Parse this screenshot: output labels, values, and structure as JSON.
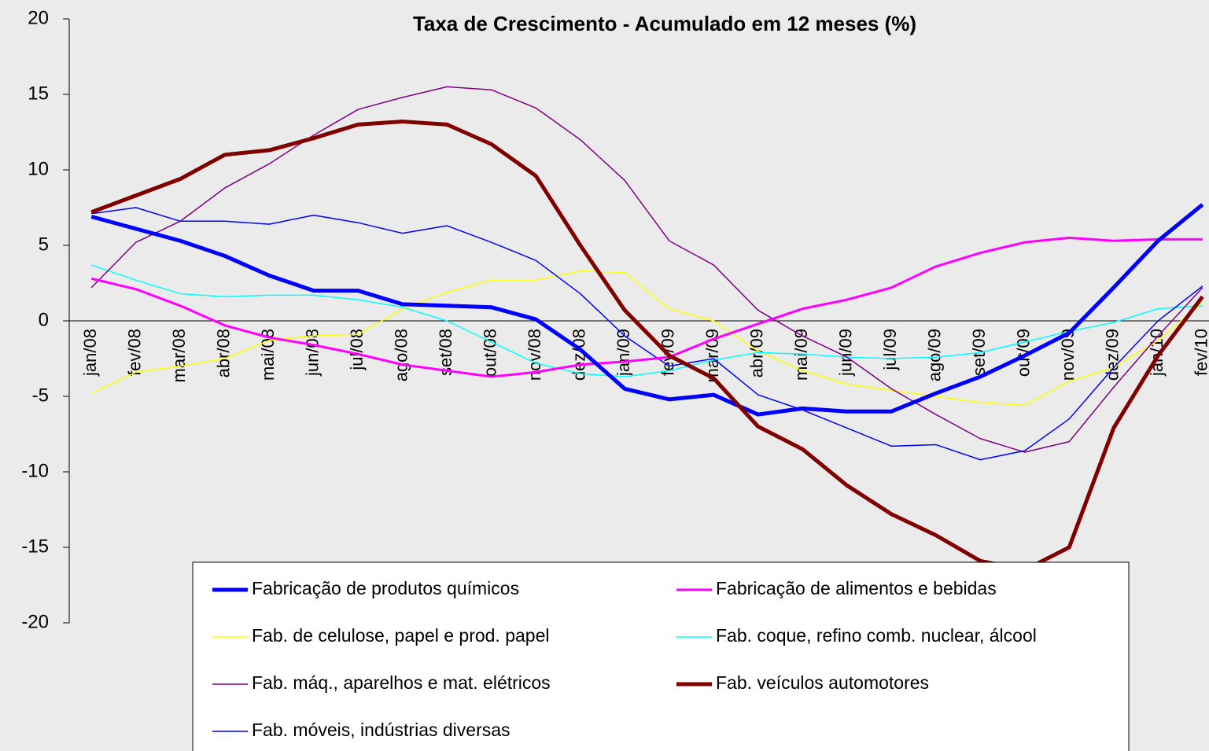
{
  "chart_data": {
    "type": "line",
    "title": "Taxa de Crescimento - Acumulado em 12 meses (%)",
    "categories": [
      "jan/08",
      "fev/08",
      "mar/08",
      "abr/08",
      "mai/08",
      "jun/08",
      "jul/08",
      "ago/08",
      "set/08",
      "out/08",
      "nov/08",
      "dez/08",
      "jan/09",
      "fev/09",
      "mar/09",
      "abr/09",
      "mai/09",
      "jun/09",
      "jul/09",
      "ago/09",
      "set/09",
      "out/09",
      "nov/09",
      "dez/09",
      "jan/10",
      "fev/10"
    ],
    "ylim": [
      -20,
      20
    ],
    "yticks": [
      -20,
      -15,
      -10,
      -5,
      0,
      5,
      10,
      15,
      20
    ],
    "grid": false,
    "legend": "bottom",
    "series": [
      {
        "name": "Fabricação de produtos químicos",
        "color": "#0000ff",
        "line_width": 5,
        "values": [
          6.9,
          6.1,
          5.3,
          4.3,
          3.0,
          2.0,
          2.0,
          1.1,
          1.0,
          0.9,
          0.1,
          -1.9,
          -4.5,
          -5.2,
          -4.9,
          -6.2,
          -5.8,
          -6.0,
          -6.0,
          -4.8,
          -3.7,
          -2.3,
          -0.8,
          2.2,
          5.3,
          7.7
        ]
      },
      {
        "name": "Fabricação de alimentos e bebidas",
        "color": "#ff00ff",
        "line_width": 3,
        "values": [
          2.8,
          2.1,
          1.0,
          -0.3,
          -1.1,
          -1.6,
          -2.2,
          -2.9,
          -3.3,
          -3.7,
          -3.4,
          -2.9,
          -2.7,
          -2.4,
          -1.2,
          -0.2,
          0.8,
          1.4,
          2.2,
          3.6,
          4.5,
          5.2,
          5.5,
          5.3,
          5.4,
          5.4
        ]
      },
      {
        "name": "Fab. de celulose, papel e prod. papel",
        "color": "#ffff00",
        "line_width": 1.5,
        "values": [
          -4.8,
          -3.4,
          -3.0,
          -2.5,
          -1.3,
          -1.0,
          -0.9,
          0.8,
          1.9,
          2.7,
          2.7,
          3.3,
          3.2,
          0.8,
          0.0,
          -2.0,
          -3.3,
          -4.2,
          -4.6,
          -5.0,
          -5.4,
          -5.6,
          -4.0,
          -3.1,
          -1.3,
          1.2
        ]
      },
      {
        "name": "Fab. coque, refino comb. nuclear, álcool",
        "color": "#00ffff",
        "line_width": 1.5,
        "values": [
          3.7,
          2.7,
          1.8,
          1.6,
          1.7,
          1.7,
          1.4,
          0.9,
          0.0,
          -1.4,
          -2.8,
          -3.5,
          -3.7,
          -3.3,
          -2.6,
          -2.1,
          -2.2,
          -2.4,
          -2.5,
          -2.4,
          -2.1,
          -1.4,
          -0.7,
          -0.1,
          0.8,
          1.0
        ]
      },
      {
        "name": "Fab. máq., aparelhos e mat. elétricos",
        "color": "#800080",
        "line_width": 1.5,
        "values": [
          2.2,
          5.2,
          6.6,
          8.8,
          10.4,
          12.3,
          14.0,
          14.8,
          15.5,
          15.3,
          14.1,
          12.0,
          9.3,
          5.3,
          3.7,
          0.7,
          -1.0,
          -2.4,
          -4.5,
          -6.2,
          -7.8,
          -8.7,
          -8.0,
          -4.4,
          -1.0,
          2.2
        ]
      },
      {
        "name": "Fab. veículos automotores",
        "color": "#800000",
        "line_width": 5,
        "values": [
          7.2,
          8.3,
          9.4,
          11.0,
          11.3,
          12.1,
          13.0,
          13.2,
          13.0,
          11.7,
          9.6,
          5.0,
          0.7,
          -2.3,
          -3.8,
          -7.0,
          -8.5,
          -10.9,
          -12.8,
          -14.2,
          -15.9,
          -16.5,
          -15.0,
          -7.1,
          -2.3,
          1.6
        ]
      },
      {
        "name": "Fab. móveis, indústrias diversas",
        "color": "#0000ff",
        "line_width": 1.5,
        "values": [
          7.1,
          7.5,
          6.6,
          6.6,
          6.4,
          7.0,
          6.5,
          5.8,
          6.3,
          5.2,
          4.0,
          1.8,
          -1.0,
          -3.0,
          -2.5,
          -4.9,
          -5.9,
          -7.1,
          -8.3,
          -8.2,
          -9.2,
          -8.6,
          -6.5,
          -3.1,
          0.0,
          2.3
        ]
      }
    ]
  }
}
